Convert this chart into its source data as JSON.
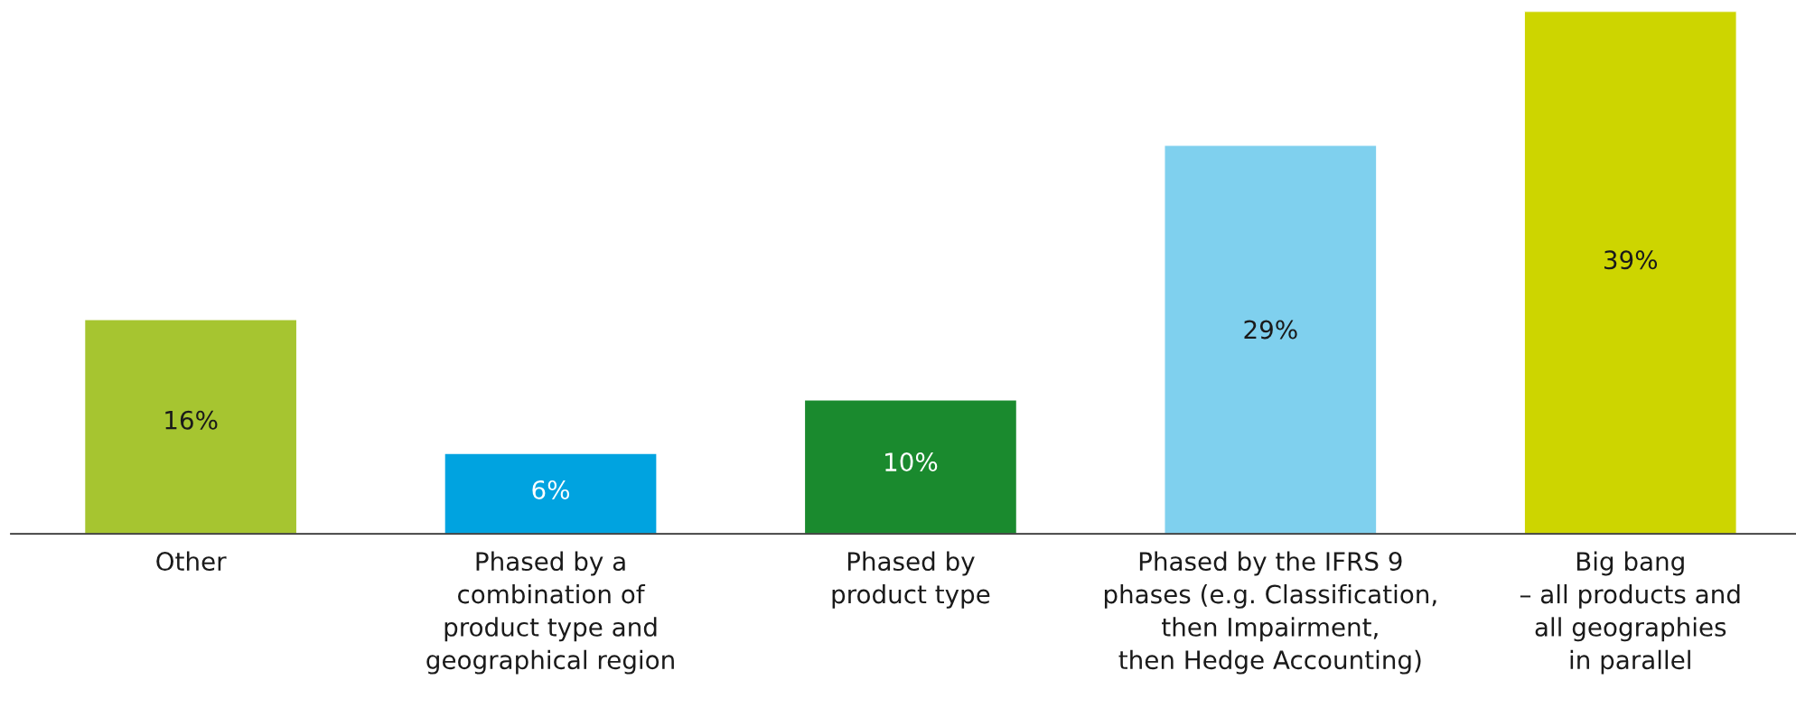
{
  "chart_data": {
    "type": "bar",
    "categories": [
      "Other",
      "Phased by a\ncombination of\nproduct type and\ngeographical region",
      "Phased by\nproduct type",
      "Phased by the IFRS 9\nphases (e.g. Classification,\nthen Impairment,\nthen Hedge Accounting)",
      "Big bang\n– all products and\nall geographies\nin parallel"
    ],
    "values": [
      16,
      6,
      10,
      29,
      39
    ],
    "colors": [
      "#a6c530",
      "#00a3e0",
      "#1a8a2e",
      "#7fd0ee",
      "#cdd500"
    ],
    "value_labels": [
      "16%",
      "6%",
      "10%",
      "29%",
      "39%"
    ]
  }
}
